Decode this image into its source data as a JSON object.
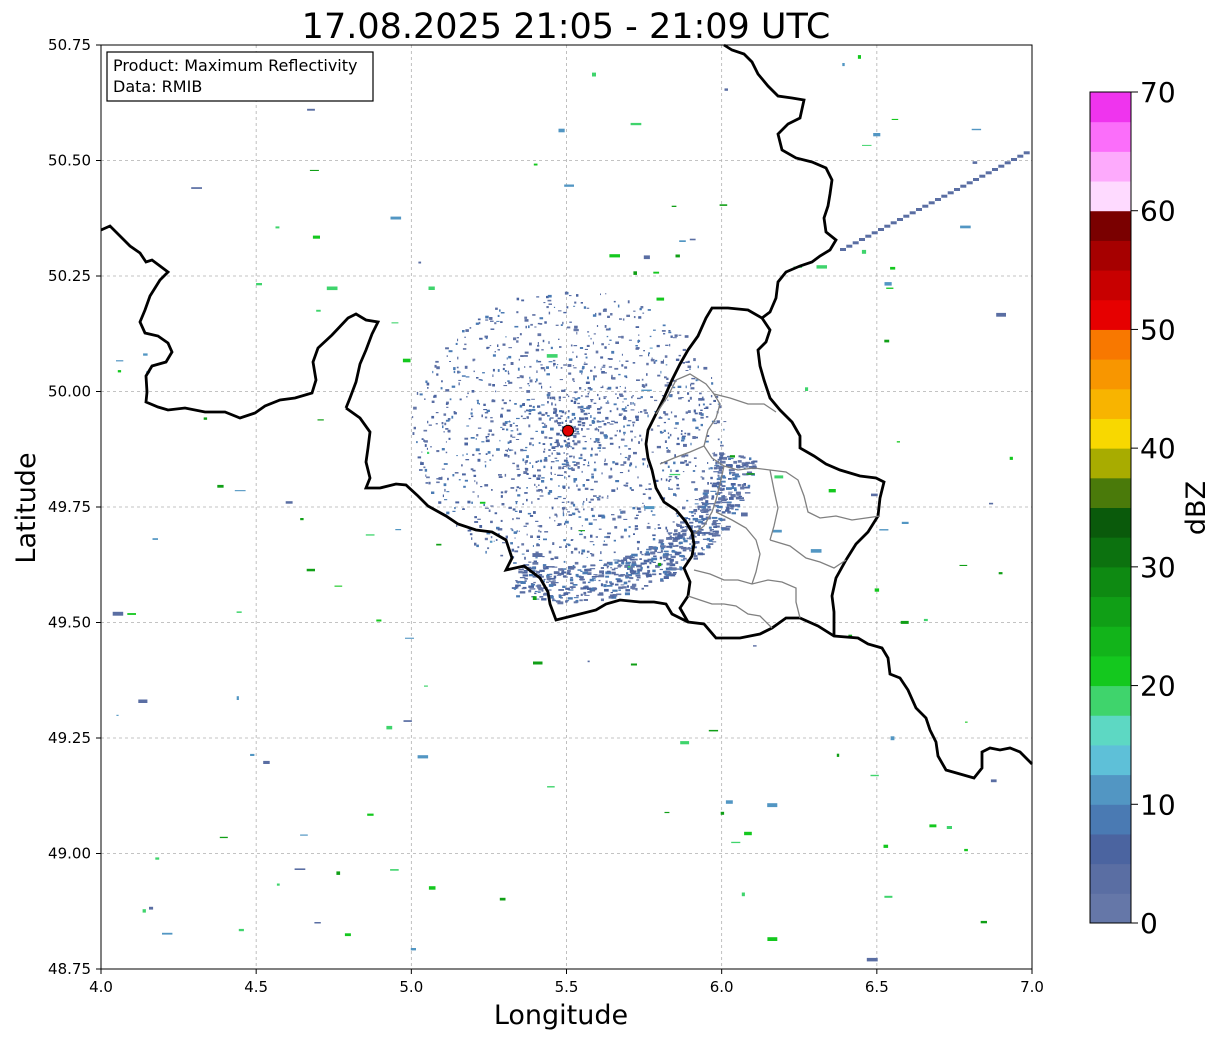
{
  "map": {
    "title": "17.08.2025 21:05 - 21:09 UTC",
    "info_box": {
      "line1": "Product: Maximum Reflectivity",
      "line2": "Data: RMIB"
    },
    "xlabel": "Longitude",
    "ylabel": "Latitude",
    "xlim": [
      4.0,
      7.0
    ],
    "ylim": [
      48.75,
      50.75
    ],
    "x_ticks": [
      "4.0",
      "4.5",
      "5.0",
      "5.5",
      "6.0",
      "6.5",
      "7.0"
    ],
    "y_ticks": [
      "48.75",
      "49.00",
      "49.25",
      "49.50",
      "49.75",
      "50.00",
      "50.25",
      "50.50",
      "50.75"
    ],
    "grid": true,
    "radar_site": {
      "lon": 5.505,
      "lat": 49.915,
      "color": "#e00000"
    }
  },
  "colorbar": {
    "label": "dBZ",
    "min": 0,
    "max": 70,
    "ticks": [
      "0",
      "10",
      "20",
      "30",
      "40",
      "50",
      "60",
      "70"
    ],
    "colors": [
      "#6577a8",
      "#5a6ea3",
      "#4b64a0",
      "#4a7ab3",
      "#5296c3",
      "#5ec0d8",
      "#5dd8c3",
      "#3fd46c",
      "#14c81e",
      "#12b41a",
      "#109f16",
      "#0e8a12",
      "#0c720f",
      "#0a5a0b",
      "#4a7a0a",
      "#a8ac00",
      "#f8d800",
      "#f8b400",
      "#f89600",
      "#f87800",
      "#e60000",
      "#c80000",
      "#a60000",
      "#7a0000",
      "#fedaff",
      "#fdaafc",
      "#fb6efa",
      "#ef34ee"
    ]
  }
}
